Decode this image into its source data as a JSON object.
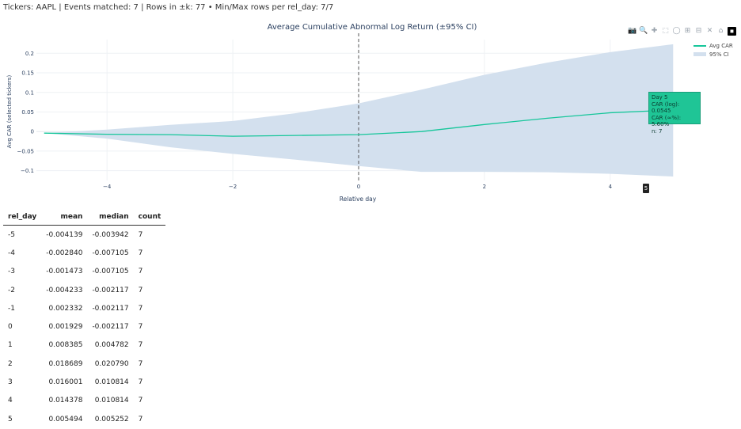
{
  "summary": "Tickers: AAPL | Events matched: 7 | Rows in ±k: 77 • Min/Max rows per rel_day: 7/7",
  "modebar": {
    "icons": [
      "camera-icon",
      "zoom-icon",
      "pan-icon",
      "box-select-icon",
      "lasso-icon",
      "zoom-in-icon",
      "zoom-out-icon",
      "autoscale-icon",
      "home-icon",
      "plotly-logo"
    ],
    "glyphs": [
      "📷",
      "🔍",
      "✚",
      "⬚",
      "◯",
      "⊞",
      "⊟",
      "✕",
      "⌂",
      "◼"
    ]
  },
  "chart_data": {
    "type": "line",
    "title": "Average Cumulative Abnormal Log Return (±95% CI)",
    "xlabel": "Relative day",
    "ylabel": "Avg CAR (selected tickers)",
    "xlim": [
      -5.5,
      5.5
    ],
    "ylim": [
      -0.125,
      0.235
    ],
    "xticks": [
      -4,
      -2,
      0,
      2,
      4
    ],
    "xtick_labels": [
      "−4",
      "−2",
      "0",
      "2",
      "4"
    ],
    "yticks": [
      -0.1,
      -0.05,
      0,
      0.05,
      0.1,
      0.15,
      0.2
    ],
    "ytick_labels": [
      "−0.1",
      "−0.05",
      "0",
      "0.05",
      "0.1",
      "0.15",
      "0.2"
    ],
    "x": [
      -5,
      -4,
      -3,
      -2,
      -1,
      0,
      1,
      2,
      3,
      4,
      5
    ],
    "series": [
      {
        "name": "Avg CAR",
        "values": [
          -0.004,
          -0.007,
          -0.008,
          -0.012,
          -0.01,
          -0.008,
          0.0,
          0.018,
          0.034,
          0.048,
          0.055
        ],
        "color": "#16c69a"
      }
    ],
    "ci": {
      "name": "95% CI",
      "lower": [
        -0.004,
        -0.018,
        -0.04,
        -0.057,
        -0.072,
        -0.088,
        -0.103,
        -0.103,
        -0.104,
        -0.108,
        -0.115
      ],
      "upper": [
        -0.004,
        0.005,
        0.017,
        0.027,
        0.047,
        0.072,
        0.107,
        0.145,
        0.176,
        0.203,
        0.223
      ],
      "color": "#d3e0ee"
    },
    "event_line_x": 0,
    "legend_position": "top-right",
    "grid": true,
    "hover": {
      "lines": [
        "Day 5",
        "CAR (log): 0.0545",
        "CAR (≈%): 5.60%",
        "n: 7"
      ],
      "tag": "5"
    }
  },
  "table": {
    "headers": [
      "rel_day",
      "mean",
      "median",
      "count"
    ],
    "rows": [
      [
        "-5",
        "-0.004139",
        "-0.003942",
        "7"
      ],
      [
        "-4",
        "-0.002840",
        "-0.007105",
        "7"
      ],
      [
        "-3",
        "-0.001473",
        "-0.007105",
        "7"
      ],
      [
        "-2",
        "-0.004233",
        "-0.002117",
        "7"
      ],
      [
        "-1",
        "0.002332",
        "-0.002117",
        "7"
      ],
      [
        "0",
        "0.001929",
        "-0.002117",
        "7"
      ],
      [
        "1",
        "0.008385",
        "0.004782",
        "7"
      ],
      [
        "2",
        "0.018689",
        "0.020790",
        "7"
      ],
      [
        "3",
        "0.016001",
        "0.010814",
        "7"
      ],
      [
        "4",
        "0.014378",
        "0.010814",
        "7"
      ],
      [
        "5",
        "0.005494",
        "0.005252",
        "7"
      ]
    ]
  }
}
